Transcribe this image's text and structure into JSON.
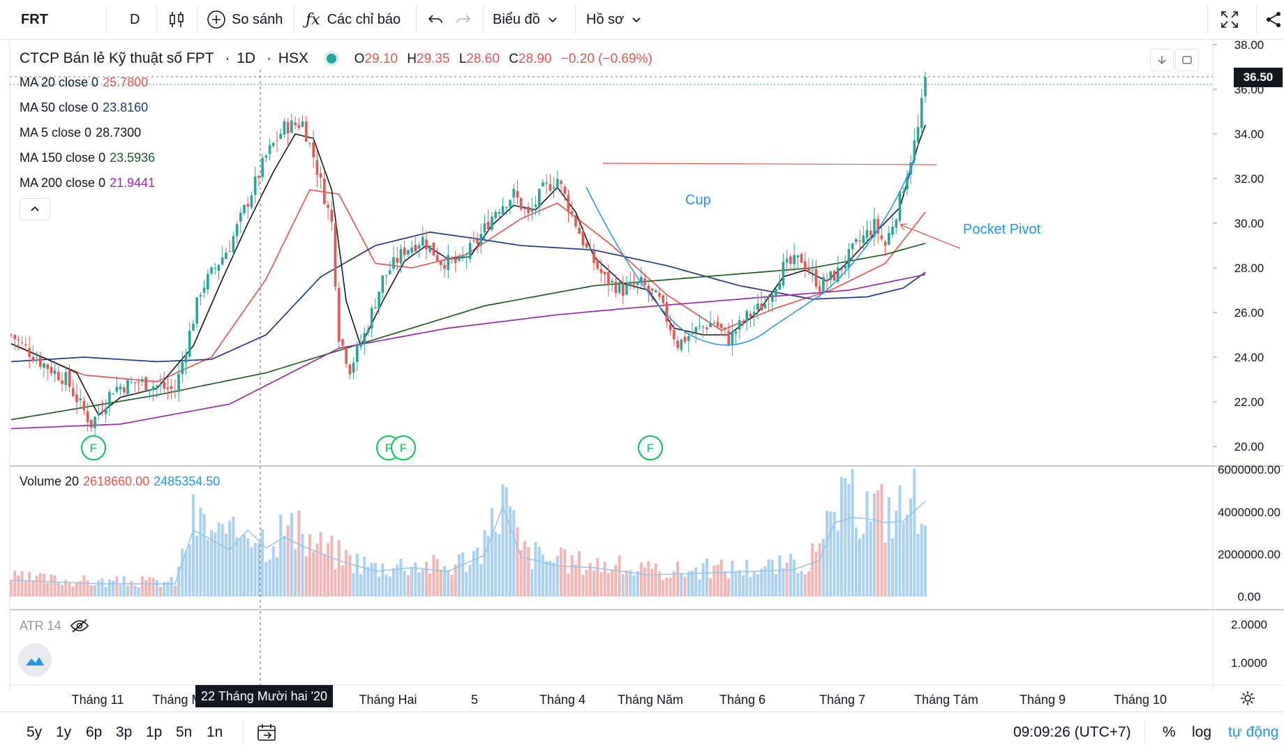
{
  "toolbar": {
    "symbol": "FRT",
    "interval": "D",
    "compare_label": "So sánh",
    "indicators_label": "Các chỉ báo",
    "chart_label": "Biểu đồ",
    "profile_label": "Hồ sơ"
  },
  "header": {
    "title": "CTCP Bán lẻ Kỹ thuật số FPT",
    "interval": "1D",
    "exchange": "HSX",
    "o_label": "O",
    "o": "29.10",
    "h_label": "H",
    "h": "29.35",
    "l_label": "L",
    "l": "28.60",
    "c_label": "C",
    "c": "28.90",
    "change": "−0.20 (−0.69%)"
  },
  "ma_legend": [
    {
      "label": "MA 20 close 0",
      "value": "25.7800",
      "color": "#ef5350"
    },
    {
      "label": "MA 50 close 0",
      "value": "23.8160",
      "color": "#1e3a8a"
    },
    {
      "label": "MA 5 close 0",
      "value": "28.7300",
      "color": "#131722"
    },
    {
      "label": "MA 150 close 0",
      "value": "23.5936",
      "color": "#1b5e20"
    },
    {
      "label": "MA 200 close 0",
      "value": "21.9441",
      "color": "#9c27b0"
    }
  ],
  "volume_legend": {
    "label": "Volume 20",
    "value1": "2618660.00",
    "value2": "2485354.50"
  },
  "atr_legend": {
    "label": "ATR 14"
  },
  "annotations": {
    "cup": "Cup",
    "pocket_pivot": "Pocket Pivot",
    "marker": "F"
  },
  "price_badge": "36.50",
  "crosshair_label": "22 Tháng Mười hai '20",
  "time_axis": [
    "Tháng 11",
    "Tháng M",
    "Tháng Hai",
    "5",
    "Tháng 4",
    "Tháng Năm",
    "Tháng 6",
    "Tháng 7",
    "Tháng Tám",
    "Tháng 9",
    "Tháng 10"
  ],
  "bottom": {
    "ranges": [
      "5y",
      "1y",
      "6p",
      "3p",
      "1p",
      "5n",
      "1n"
    ],
    "time": "09:09:26 (UTC+7)",
    "percent": "%",
    "log": "log",
    "auto": "tự động"
  },
  "colors": {
    "up": "#26a69a",
    "down": "#ef5350",
    "vol_up": "#a9d0f5",
    "vol_down": "#f5b5b4",
    "accent": "#2196f3",
    "marker": "#00c853"
  },
  "chart_data": {
    "type": "candlestick",
    "price_axis": {
      "min": 20,
      "max": 38,
      "ticks": [
        "38.00",
        "36.00",
        "34.00",
        "32.00",
        "30.00",
        "28.00",
        "26.00",
        "24.00",
        "22.00",
        "20.00"
      ]
    },
    "volume_axis": {
      "ticks": [
        "6000000.00",
        "4000000.00",
        "2000000.00",
        "0.00"
      ]
    },
    "atr_axis": {
      "ticks": [
        "2.0000",
        "1.0000"
      ]
    },
    "price_key": [
      [
        0,
        25.0
      ],
      [
        8,
        23.8
      ],
      [
        15,
        23.0
      ],
      [
        22,
        21.0
      ],
      [
        28,
        22.6
      ],
      [
        35,
        22.9
      ],
      [
        45,
        22.5
      ],
      [
        52,
        27.0
      ],
      [
        60,
        29.0
      ],
      [
        65,
        31.0
      ],
      [
        70,
        33.0
      ],
      [
        75,
        34.3
      ],
      [
        80,
        34.5
      ],
      [
        83,
        33.0
      ],
      [
        88,
        30.0
      ],
      [
        90,
        25.0
      ],
      [
        93,
        23.5
      ],
      [
        97,
        25.0
      ],
      [
        102,
        27.5
      ],
      [
        108,
        28.8
      ],
      [
        113,
        29.3
      ],
      [
        118,
        28.3
      ],
      [
        123,
        28.2
      ],
      [
        128,
        29.2
      ],
      [
        133,
        30.6
      ],
      [
        138,
        31.3
      ],
      [
        142,
        30.3
      ],
      [
        146,
        31.5
      ],
      [
        150,
        32.0
      ],
      [
        154,
        30.4
      ],
      [
        158,
        28.8
      ],
      [
        163,
        27.5
      ],
      [
        168,
        27.0
      ],
      [
        173,
        27.3
      ],
      [
        178,
        26.5
      ],
      [
        183,
        24.6
      ],
      [
        188,
        25.2
      ],
      [
        193,
        25.6
      ],
      [
        197,
        24.8
      ],
      [
        202,
        25.8
      ],
      [
        207,
        26.4
      ],
      [
        212,
        28.0
      ],
      [
        217,
        28.4
      ],
      [
        222,
        27.2
      ],
      [
        227,
        27.8
      ],
      [
        232,
        29.0
      ],
      [
        237,
        29.9
      ],
      [
        240,
        29.0
      ],
      [
        243,
        30.5
      ],
      [
        246,
        32.3
      ],
      [
        249,
        34.2
      ],
      [
        251,
        36.4
      ]
    ],
    "series": [
      {
        "name": "MA 20 close 0",
        "color": "#ef5350",
        "points": [
          [
            0,
            24.6
          ],
          [
            20,
            23.2
          ],
          [
            40,
            22.9
          ],
          [
            55,
            24.0
          ],
          [
            70,
            27.5
          ],
          [
            82,
            31.5
          ],
          [
            90,
            31.3
          ],
          [
            100,
            28.2
          ],
          [
            110,
            28.0
          ],
          [
            125,
            28.6
          ],
          [
            140,
            30.2
          ],
          [
            150,
            30.9
          ],
          [
            165,
            29.0
          ],
          [
            180,
            26.8
          ],
          [
            195,
            25.2
          ],
          [
            210,
            26.2
          ],
          [
            225,
            27.0
          ],
          [
            240,
            28.2
          ],
          [
            251,
            30.5
          ]
        ]
      },
      {
        "name": "MA 50 close 0",
        "color": "#1e3a8a",
        "points": [
          [
            0,
            23.8
          ],
          [
            20,
            24.0
          ],
          [
            40,
            23.8
          ],
          [
            55,
            23.9
          ],
          [
            70,
            25.0
          ],
          [
            85,
            27.6
          ],
          [
            100,
            29.0
          ],
          [
            115,
            29.6
          ],
          [
            128,
            29.3
          ],
          [
            140,
            29.0
          ],
          [
            160,
            28.8
          ],
          [
            180,
            28.1
          ],
          [
            200,
            27.2
          ],
          [
            220,
            26.6
          ],
          [
            235,
            26.7
          ],
          [
            245,
            27.1
          ],
          [
            251,
            27.8
          ]
        ]
      },
      {
        "name": "MA 5 close 0",
        "color": "#131722",
        "points": [
          [
            0,
            24.6
          ],
          [
            10,
            23.9
          ],
          [
            18,
            23.3
          ],
          [
            24,
            21.4
          ],
          [
            30,
            22.2
          ],
          [
            40,
            22.6
          ],
          [
            50,
            24.5
          ],
          [
            58,
            27.5
          ],
          [
            65,
            30.0
          ],
          [
            72,
            32.3
          ],
          [
            78,
            34.0
          ],
          [
            83,
            33.8
          ],
          [
            88,
            31.5
          ],
          [
            92,
            26.5
          ],
          [
            96,
            24.5
          ],
          [
            102,
            26.5
          ],
          [
            108,
            28.3
          ],
          [
            114,
            29.0
          ],
          [
            120,
            28.4
          ],
          [
            126,
            28.5
          ],
          [
            132,
            29.9
          ],
          [
            138,
            30.8
          ],
          [
            144,
            30.6
          ],
          [
            150,
            31.6
          ],
          [
            155,
            30.5
          ],
          [
            160,
            28.5
          ],
          [
            168,
            27.3
          ],
          [
            175,
            27.0
          ],
          [
            182,
            25.3
          ],
          [
            190,
            25.0
          ],
          [
            197,
            25.0
          ],
          [
            205,
            26.0
          ],
          [
            212,
            27.6
          ],
          [
            218,
            27.9
          ],
          [
            224,
            27.4
          ],
          [
            230,
            28.3
          ],
          [
            238,
            29.7
          ],
          [
            244,
            30.7
          ],
          [
            249,
            33.5
          ],
          [
            251,
            34.4
          ]
        ]
      },
      {
        "name": "MA 150 close 0",
        "color": "#1b5e20",
        "points": [
          [
            0,
            21.2
          ],
          [
            40,
            22.3
          ],
          [
            70,
            23.3
          ],
          [
            100,
            24.8
          ],
          [
            130,
            26.3
          ],
          [
            160,
            27.2
          ],
          [
            190,
            27.6
          ],
          [
            220,
            28.0
          ],
          [
            240,
            28.6
          ],
          [
            251,
            29.1
          ]
        ]
      },
      {
        "name": "MA 200 close 0",
        "color": "#9c27b0",
        "points": [
          [
            0,
            20.8
          ],
          [
            30,
            21.0
          ],
          [
            60,
            21.9
          ],
          [
            90,
            24.4
          ],
          [
            120,
            25.3
          ],
          [
            150,
            25.9
          ],
          [
            170,
            26.2
          ],
          [
            200,
            26.6
          ],
          [
            230,
            27.0
          ],
          [
            251,
            27.7
          ]
        ]
      }
    ],
    "volume_key": [
      [
        0,
        0.9
      ],
      [
        25,
        0.7
      ],
      [
        45,
        0.7
      ],
      [
        50,
        3.7
      ],
      [
        60,
        2.6
      ],
      [
        65,
        3.7
      ],
      [
        70,
        2.7
      ],
      [
        75,
        3.3
      ],
      [
        80,
        2.8
      ],
      [
        90,
        2.0
      ],
      [
        100,
        1.4
      ],
      [
        110,
        1.6
      ],
      [
        120,
        1.4
      ],
      [
        130,
        2.3
      ],
      [
        135,
        5.0
      ],
      [
        140,
        2.2
      ],
      [
        150,
        1.7
      ],
      [
        160,
        1.6
      ],
      [
        175,
        1.2
      ],
      [
        190,
        1.3
      ],
      [
        205,
        1.4
      ],
      [
        215,
        1.5
      ],
      [
        222,
        2.0
      ],
      [
        226,
        4.1
      ],
      [
        231,
        4.4
      ],
      [
        236,
        4.3
      ],
      [
        240,
        4.1
      ],
      [
        245,
        4.2
      ],
      [
        251,
        5.3
      ]
    ]
  }
}
